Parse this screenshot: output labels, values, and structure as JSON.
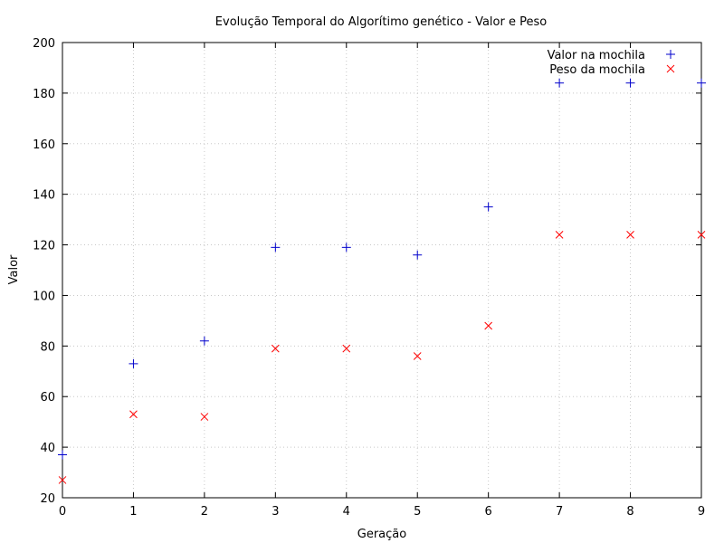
{
  "chart_data": {
    "type": "scatter",
    "title": "Evolução Temporal do Algorítimo genético - Valor e Peso",
    "xlabel": "Geração",
    "ylabel": "Valor",
    "xlim": [
      0,
      9
    ],
    "ylim": [
      20,
      200
    ],
    "xticks": [
      "0",
      "1",
      "2",
      "3",
      "4",
      "5",
      "6",
      "7",
      "8",
      "9"
    ],
    "yticks": [
      "20",
      "40",
      "60",
      "80",
      "100",
      "120",
      "140",
      "160",
      "180",
      "200"
    ],
    "grid": true,
    "legend_position": "top-right",
    "x": [
      0,
      1,
      2,
      3,
      4,
      5,
      6,
      7,
      8,
      9
    ],
    "series": [
      {
        "name": "Valor na mochila",
        "marker": "plus",
        "color": "#0000cc",
        "values": [
          37,
          73,
          82,
          119,
          119,
          116,
          135,
          184,
          184,
          184
        ]
      },
      {
        "name": "Peso da mochila",
        "marker": "cross",
        "color": "#ff0000",
        "values": [
          27,
          53,
          52,
          79,
          79,
          76,
          88,
          124,
          124,
          124
        ]
      }
    ]
  }
}
